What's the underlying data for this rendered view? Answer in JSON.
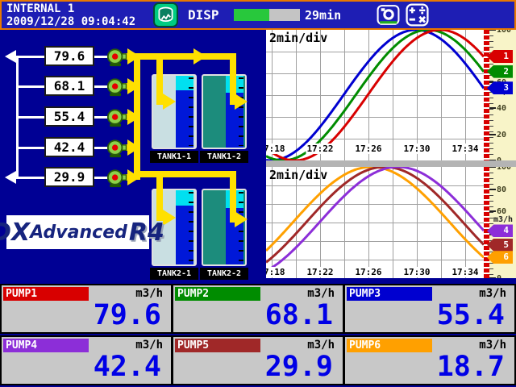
{
  "header": {
    "group_name": "INTERNAL 1",
    "datetime": "2009/12/28 09:04:42",
    "disp_label": "DISP",
    "memory_bar": {
      "remaining_label": "29min",
      "fill_pct": 54,
      "fill_color": "#28c83c",
      "track_color": "#c4c4c4"
    },
    "icons": {
      "display": "trend-display-icon",
      "camera": "snapshot-camera-icon",
      "math": "math-calc-icon"
    }
  },
  "mimic": {
    "flow_values": [
      "79.6",
      "68.1",
      "55.4",
      "42.4",
      "29.9"
    ],
    "tanks": [
      {
        "label": "TANK1-1",
        "body_color": "#c9dfe2",
        "level_pct": 80
      },
      {
        "label": "TANK1-2",
        "body_color": "#1c8c7c",
        "level_pct": 76
      },
      {
        "label": "TANK2-1",
        "body_color": "#c9dfe2",
        "level_pct": 79
      },
      {
        "label": "TANK2-2",
        "body_color": "#1c8c7c",
        "level_pct": 76
      }
    ],
    "logo": {
      "dx": "DX",
      "advanced": "Advanced",
      "r4": "R4"
    }
  },
  "chart_data": [
    {
      "type": "line",
      "time_per_div": "2min/div",
      "x_axis": {
        "tick_labels": [
          "17:18",
          "17:22",
          "17:26",
          "17:30",
          "17:34"
        ],
        "minutes_per_div": 2
      },
      "y_axis": {
        "min": 0,
        "max": 100,
        "tick_labels": [
          "100",
          "80",
          "60",
          "40",
          "20",
          "0"
        ],
        "unit": "m3/h"
      },
      "waveform": {
        "shape": "sine",
        "period_min": 24,
        "min": 0,
        "max": 100
      },
      "series": [
        {
          "channel": "1",
          "name": "PUMP1",
          "color": "#d80000",
          "current_value": 79.6,
          "peak_minutes_before_right_edge": 3.6
        },
        {
          "channel": "2",
          "name": "PUMP2",
          "color": "#008c00",
          "current_value": 68.1,
          "peak_minutes_before_right_edge": 4.6
        },
        {
          "channel": "3",
          "name": "PUMP3",
          "color": "#0000d0",
          "current_value": 55.4,
          "peak_minutes_before_right_edge": 5.6
        }
      ]
    },
    {
      "type": "line",
      "time_per_div": "2min/div",
      "x_axis": {
        "tick_labels": [
          "17:18",
          "17:22",
          "17:26",
          "17:30",
          "17:34"
        ],
        "minutes_per_div": 2
      },
      "y_axis": {
        "min": 0,
        "max": 100,
        "tick_labels": [
          "100",
          "80",
          "60",
          "40",
          "20",
          "0"
        ],
        "unit": "m3/h"
      },
      "waveform": {
        "shape": "sine",
        "period_min": 26,
        "min": 0,
        "max": 100
      },
      "series": [
        {
          "channel": "4",
          "name": "PUMP4",
          "color": "#8c2ed8",
          "current_value": 42.4,
          "peak_minutes_before_right_edge": 7.1
        },
        {
          "channel": "5",
          "name": "PUMP5",
          "color": "#a02828",
          "current_value": 29.9,
          "peak_minutes_before_right_edge": 8.2
        },
        {
          "channel": "6",
          "name": "PUMP6",
          "color": "#ffa000",
          "current_value": 18.7,
          "peak_minutes_before_right_edge": 9.3
        }
      ]
    }
  ],
  "pumps": [
    {
      "label": "PUMP1",
      "color": "#d80000",
      "unit": "m3/h",
      "value": "79.6"
    },
    {
      "label": "PUMP2",
      "color": "#008c00",
      "unit": "m3/h",
      "value": "68.1"
    },
    {
      "label": "PUMP3",
      "color": "#0000d0",
      "unit": "m3/h",
      "value": "55.4"
    },
    {
      "label": "PUMP4",
      "color": "#8c2ed8",
      "unit": "m3/h",
      "value": "42.4"
    },
    {
      "label": "PUMP5",
      "color": "#a02828",
      "unit": "m3/h",
      "value": "29.9"
    },
    {
      "label": "PUMP6",
      "color": "#ffa000",
      "unit": "m3/h",
      "value": "18.7"
    }
  ]
}
